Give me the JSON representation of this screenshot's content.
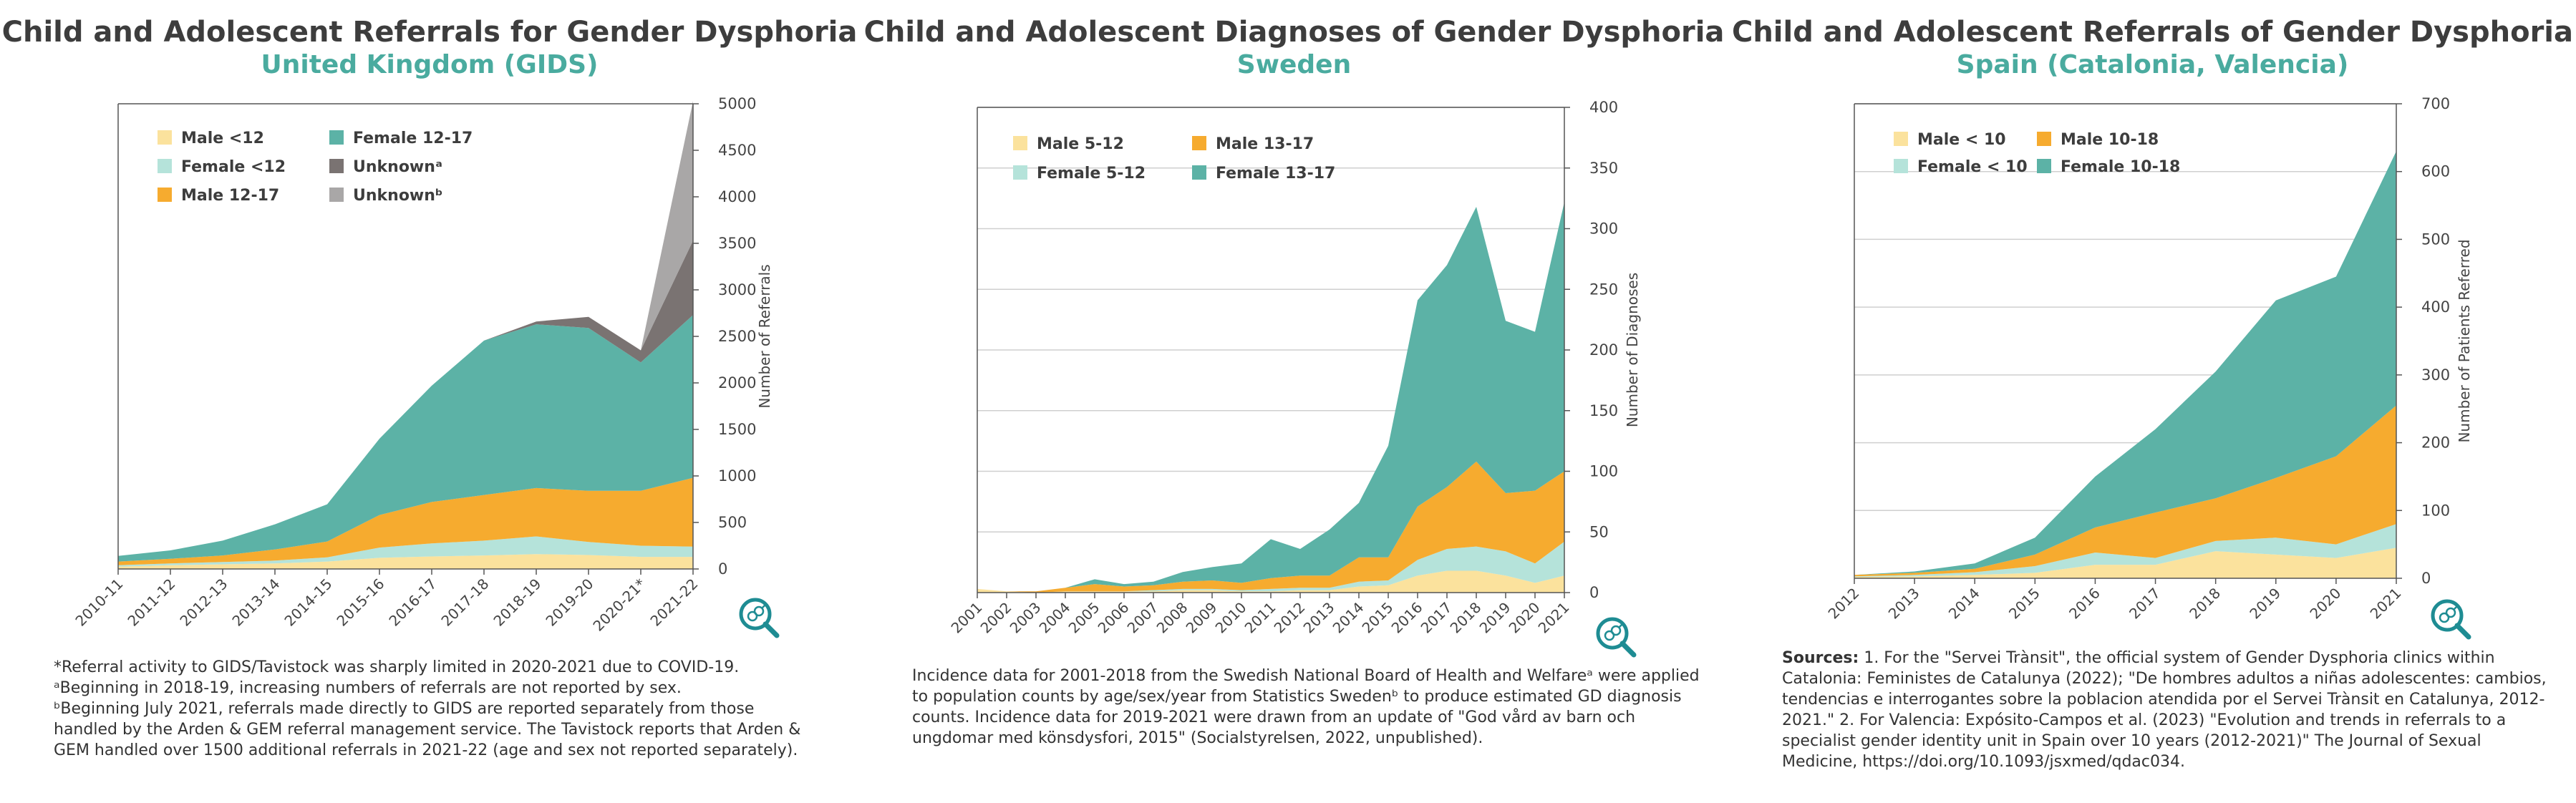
{
  "colors": {
    "male_young": "#fbe29d",
    "female_young": "#b5e3da",
    "male_teen": "#f6ab2f",
    "female_teen": "#5cb2a6",
    "unknown_a": "#7a7372",
    "unknown_b": "#a9a7a7",
    "title": "#3d3d3d",
    "subtitle": "#4aab9f",
    "magnifier": "#1e8c93"
  },
  "panels": {
    "uk": {
      "title": "Child and Adolescent Referrals for Gender Dysphoria",
      "subtitle": "United Kingdom (GIDS)",
      "notes": [
        "*Referral activity to GIDS/Tavistock was sharply limited in 2020-2021 due to COVID-19.",
        "ᵃBeginning in 2018-19, increasing numbers of referrals are not reported by sex.",
        "ᵇBeginning July 2021, referrals made directly to GIDS are reported separately from those handled by the Arden & GEM referral management service. The Tavistock reports that Arden & GEM handled over 1500 additional referrals in 2021-22 (age and sex not reported separately)."
      ]
    },
    "se": {
      "title": "Child and Adolescent Diagnoses of Gender Dysphoria",
      "subtitle": "Sweden",
      "notes": [
        "Incidence data for 2001-2018 from the Swedish National Board of Health and Welfareᵃ were applied to population counts by age/sex/year from Statistics Swedenᵇ to produce estimated GD diagnosis counts. Incidence data for 2019-2021 were drawn from an update of \"God vård av barn och ungdomar med könsdysfori, 2015\" (Socialstyrelsen, 2022, unpublished)."
      ]
    },
    "es": {
      "title": "Child and Adolescent Referrals of Gender Dysphoria",
      "subtitle": "Spain (Catalonia, Valencia)",
      "sources_label": "Sources:",
      "notes": [
        "1. For the \"Servei Trànsit\", the official system of Gender Dysphoria clinics within Catalonia: Feministes de Catalunya (2022); \"De hombres adultos a niñas adolescentes: cambios, tendencias e interrogantes sobre la poblacion atendida por el Servei Trànsit en Catalunya, 2012-2021.\" 2. For Valencia: Expósito-Campos et al. (2023) \"Evolution and trends in referrals to a specialist gender identity unit in Spain over 10 years (2012-2021)\" The Journal of Sexual Medicine, https://doi.org/10.1093/jsxmed/qdac034."
      ]
    }
  },
  "chart_data": [
    {
      "id": "uk",
      "type": "area",
      "stacked": true,
      "title": "Child and Adolescent Referrals for Gender Dysphoria",
      "subtitle": "United Kingdom (GIDS)",
      "xlabel": "",
      "ylabel": "Number of Referrals",
      "ylim": [
        0,
        5000
      ],
      "yticks": [
        0,
        500,
        1000,
        1500,
        2000,
        2500,
        3000,
        3500,
        4000,
        4500,
        5000
      ],
      "grid": false,
      "legend_position": "top-left",
      "categories": [
        "2010-11",
        "2011-12",
        "2012-13",
        "2013-14",
        "2014-15",
        "2015-16",
        "2016-17",
        "2017-18",
        "2018-19",
        "2019-20",
        "2020-21*",
        "2021-22"
      ],
      "series": [
        {
          "name": "Male <12",
          "color_key": "male_young",
          "values": [
            25,
            40,
            50,
            60,
            80,
            120,
            135,
            145,
            160,
            150,
            130,
            130
          ]
        },
        {
          "name": "Female <12",
          "color_key": "female_young",
          "values": [
            15,
            20,
            25,
            30,
            45,
            110,
            140,
            160,
            190,
            140,
            120,
            110
          ]
        },
        {
          "name": "Male 12-17",
          "color_key": "male_teen",
          "values": [
            40,
            50,
            70,
            120,
            170,
            350,
            445,
            490,
            520,
            550,
            590,
            740
          ]
        },
        {
          "name": "Female 12-17",
          "color_key": "female_teen",
          "values": [
            60,
            90,
            160,
            270,
            400,
            820,
            1250,
            1660,
            1760,
            1750,
            1380,
            1750
          ]
        },
        {
          "name": "Unknownᵃ",
          "color_key": "unknown_a",
          "values": [
            0,
            0,
            0,
            0,
            0,
            0,
            0,
            0,
            30,
            120,
            130,
            800
          ]
        },
        {
          "name": "Unknownᵇ",
          "color_key": "unknown_b",
          "values": [
            0,
            0,
            0,
            0,
            0,
            0,
            0,
            0,
            0,
            0,
            0,
            1500
          ]
        }
      ]
    },
    {
      "id": "se",
      "type": "area",
      "stacked": true,
      "title": "Child and Adolescent Diagnoses of Gender Dysphoria",
      "subtitle": "Sweden",
      "xlabel": "",
      "ylabel": "Number of Diagnoses",
      "ylim": [
        0,
        400
      ],
      "yticks": [
        0,
        50,
        100,
        150,
        200,
        250,
        300,
        350,
        400
      ],
      "grid": true,
      "legend_position": "top-left",
      "categories": [
        "2001",
        "2002",
        "2003",
        "2004",
        "2005",
        "2006",
        "2007",
        "2008",
        "2009",
        "2010",
        "2011",
        "2012",
        "2013",
        "2014",
        "2015",
        "2016",
        "2017",
        "2018",
        "2019",
        "2020",
        "2021"
      ],
      "series": [
        {
          "name": "Male 5-12",
          "color_key": "male_young",
          "values": [
            3,
            1,
            0,
            1,
            1,
            1,
            1,
            2,
            2,
            1,
            1,
            2,
            2,
            5,
            6,
            14,
            18,
            18,
            14,
            8,
            14
          ]
        },
        {
          "name": "Female 5-12",
          "color_key": "female_young",
          "values": [
            0,
            0,
            0,
            0,
            0,
            0,
            1,
            1,
            1,
            1,
            2,
            2,
            2,
            4,
            4,
            13,
            18,
            20,
            20,
            16,
            28
          ]
        },
        {
          "name": "Male 13-17",
          "color_key": "male_teen",
          "values": [
            0,
            0,
            1,
            3,
            6,
            4,
            4,
            6,
            7,
            6,
            9,
            10,
            10,
            20,
            19,
            44,
            51,
            70,
            48,
            60,
            58
          ]
        },
        {
          "name": "Female 13-17",
          "color_key": "female_teen",
          "values": [
            0,
            0,
            0,
            0,
            4,
            2,
            3,
            8,
            11,
            16,
            32,
            22,
            38,
            45,
            92,
            170,
            183,
            210,
            142,
            131,
            222
          ]
        }
      ]
    },
    {
      "id": "es",
      "type": "area",
      "stacked": true,
      "title": "Child and Adolescent Referrals of Gender Dysphoria",
      "subtitle": "Spain (Catalonia, Valencia)",
      "xlabel": "",
      "ylabel": "Number of Patients Referred",
      "ylim": [
        0,
        700
      ],
      "yticks": [
        0,
        100,
        200,
        300,
        400,
        500,
        600,
        700
      ],
      "grid": true,
      "legend_position": "top-left",
      "categories": [
        "2012",
        "2013",
        "2014",
        "2015",
        "2016",
        "2017",
        "2018",
        "2019",
        "2020",
        "2021"
      ],
      "series": [
        {
          "name": "Male < 10",
          "color_key": "male_young",
          "values": [
            2,
            3,
            5,
            8,
            20,
            20,
            40,
            35,
            30,
            45
          ]
        },
        {
          "name": "Female < 10",
          "color_key": "female_young",
          "values": [
            1,
            2,
            4,
            10,
            18,
            10,
            15,
            25,
            20,
            35
          ]
        },
        {
          "name": "Male 10-18",
          "color_key": "male_teen",
          "values": [
            2,
            3,
            5,
            17,
            37,
            67,
            63,
            88,
            130,
            175
          ]
        },
        {
          "name": "Female 10-18",
          "color_key": "female_teen",
          "values": [
            0,
            2,
            8,
            25,
            75,
            123,
            187,
            262,
            265,
            375
          ]
        }
      ]
    }
  ]
}
